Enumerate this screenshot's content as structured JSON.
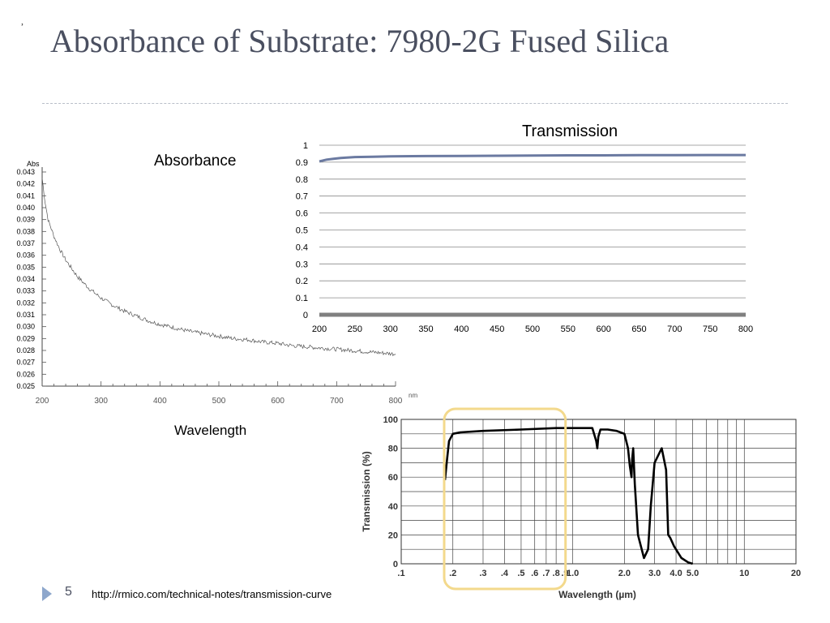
{
  "slide": {
    "mark": ",",
    "title": "Absorbance of Substrate: 7980-2G Fused Silica",
    "page_number": "5",
    "source_url": "http://rmico.com/technical-notes/transmission-curve",
    "accent_color": "#8ea7cc",
    "title_color": "#4a4f60"
  },
  "chart_data": [
    {
      "type": "line",
      "heading": "Absorbance",
      "ylabel": "Abs",
      "xlabel": "Wavelength",
      "x_unit": "nm",
      "xlim": [
        200,
        800
      ],
      "ylim": [
        0.025,
        0.043
      ],
      "x_ticks": [
        "200",
        "300",
        "400",
        "500",
        "600",
        "700",
        "800"
      ],
      "y_ticks": [
        "0.025",
        "0.026",
        "0.027",
        "0.028",
        "0.029",
        "0.030",
        "0.031",
        "0.032",
        "0.033",
        "0.034",
        "0.035",
        "0.036",
        "0.037",
        "0.038",
        "0.039",
        "0.040",
        "0.041",
        "0.042",
        "0.043"
      ],
      "grid": false,
      "series": [
        {
          "x": [
            200,
            205,
            210,
            220,
            230,
            240,
            250,
            260,
            270,
            280,
            290,
            300,
            320,
            340,
            360,
            380,
            400,
            425,
            450,
            475,
            500,
            525,
            550,
            575,
            600,
            625,
            650,
            675,
            700,
            725,
            750,
            775,
            800
          ],
          "y": [
            0.0425,
            0.0405,
            0.039,
            0.0376,
            0.0365,
            0.0356,
            0.0349,
            0.0342,
            0.0337,
            0.0332,
            0.0328,
            0.0324,
            0.0318,
            0.0313,
            0.0309,
            0.0305,
            0.0302,
            0.0299,
            0.0296,
            0.0294,
            0.0292,
            0.029,
            0.0289,
            0.0287,
            0.0286,
            0.0284,
            0.0283,
            0.0282,
            0.0281,
            0.028,
            0.0279,
            0.0278,
            0.0277
          ],
          "color": "#555555"
        }
      ]
    },
    {
      "type": "line",
      "title": "Transmission",
      "xlim": [
        200,
        800
      ],
      "ylim": [
        0,
        1
      ],
      "x_ticks": [
        "200",
        "250",
        "300",
        "350",
        "400",
        "450",
        "500",
        "550",
        "600",
        "650",
        "700",
        "750",
        "800"
      ],
      "y_ticks": [
        "0",
        "0.1",
        "0.2",
        "0.3",
        "0.4",
        "0.5",
        "0.6",
        "0.7",
        "0.8",
        "0.9",
        "1"
      ],
      "grid": true,
      "series": [
        {
          "x": [
            200,
            210,
            220,
            230,
            250,
            275,
            300,
            350,
            400,
            450,
            500,
            550,
            600,
            650,
            700,
            750,
            800
          ],
          "y": [
            0.905,
            0.915,
            0.92,
            0.925,
            0.93,
            0.932,
            0.934,
            0.936,
            0.937,
            0.938,
            0.939,
            0.94,
            0.94,
            0.941,
            0.941,
            0.942,
            0.942
          ],
          "color": "#6b7aa1"
        },
        {
          "x": [
            200,
            800
          ],
          "y": [
            0,
            0
          ],
          "color": "#808080"
        }
      ]
    },
    {
      "type": "line",
      "ylabel": "Transmission (%)",
      "xlabel": "Wavelength (µm)",
      "xlim": [
        0.1,
        20
      ],
      "ylim": [
        0,
        100
      ],
      "log_x": true,
      "x_ticks": [
        ".1",
        ".2",
        ".3",
        ".4",
        ".5",
        ".6",
        ".7",
        ".8",
        ".9",
        "1.0",
        "2.0",
        "3.0",
        "4.0",
        "5.0",
        "10",
        "20"
      ],
      "y_ticks": [
        "0",
        "20",
        "40",
        "60",
        "80",
        "100"
      ],
      "grid": true,
      "highlight_range": [
        0.19,
        0.85
      ],
      "highlight_color": "#f3d98c",
      "series": [
        {
          "x": [
            0.18,
            0.185,
            0.19,
            0.2,
            0.22,
            0.3,
            0.5,
            0.8,
            1.0,
            1.2,
            1.3,
            1.37,
            1.39,
            1.41,
            1.45,
            1.6,
            1.8,
            2.0,
            2.1,
            2.15,
            2.2,
            2.22,
            2.25,
            2.3,
            2.4,
            2.6,
            2.75,
            2.85,
            3.0,
            3.3,
            3.5,
            3.6,
            3.7,
            3.9,
            4.3,
            4.7,
            5.0
          ],
          "y": [
            58,
            72,
            85,
            90,
            91,
            92,
            93,
            94,
            94,
            94,
            94,
            85,
            80,
            88,
            93,
            93,
            92,
            90,
            80,
            68,
            60,
            72,
            80,
            55,
            20,
            4,
            10,
            40,
            70,
            80,
            65,
            20,
            18,
            12,
            4,
            1,
            0
          ],
          "color": "#000000"
        }
      ]
    }
  ]
}
